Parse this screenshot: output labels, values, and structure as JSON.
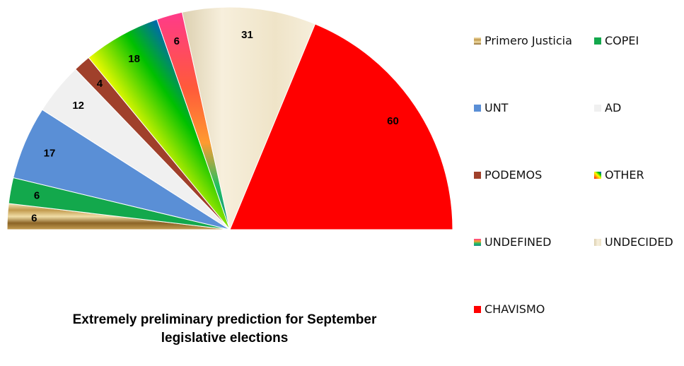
{
  "chart_data": {
    "type": "pie",
    "subtype": "semicircle",
    "title_lines": [
      "Extremely preliminary  prediction  for September",
      "legislative elections"
    ],
    "slices": [
      {
        "name": "Primero Justicia",
        "value": 6,
        "label": "6",
        "color": "#c9a659",
        "fill": "gold-stripes"
      },
      {
        "name": "COPEI",
        "value": 6,
        "label": "6",
        "color": "#13a84c",
        "fill": "solid"
      },
      {
        "name": "UNT",
        "value": 17,
        "label": "17",
        "color": "#5a8fd6",
        "fill": "solid"
      },
      {
        "name": "AD",
        "value": 12,
        "label": "12",
        "color": "#f0f0f0",
        "fill": "solid"
      },
      {
        "name": "PODEMOS",
        "value": 4,
        "label": "4",
        "color": "#a0402b",
        "fill": "solid"
      },
      {
        "name": "OTHER",
        "value": 18,
        "label": "18",
        "color": "#ffd700",
        "fill": "rainbow"
      },
      {
        "name": "UNDEFINED",
        "value": 6,
        "label": "6",
        "color": "#ff3f7f",
        "fill": "sunset"
      },
      {
        "name": "UNDECIDED",
        "value": 31,
        "label": "31",
        "color": "#f3ead2",
        "fill": "parchment"
      },
      {
        "name": "CHAVISMO",
        "value": 60,
        "label": "60",
        "color": "#ff0000",
        "fill": "solid"
      }
    ],
    "legend": {
      "placement": "right",
      "columns": 2,
      "order": [
        "Primero Justicia",
        "COPEI",
        "UNT",
        "AD",
        "PODEMOS",
        "OTHER",
        "UNDEFINED",
        "UNDECIDED",
        "CHAVISMO"
      ]
    }
  }
}
